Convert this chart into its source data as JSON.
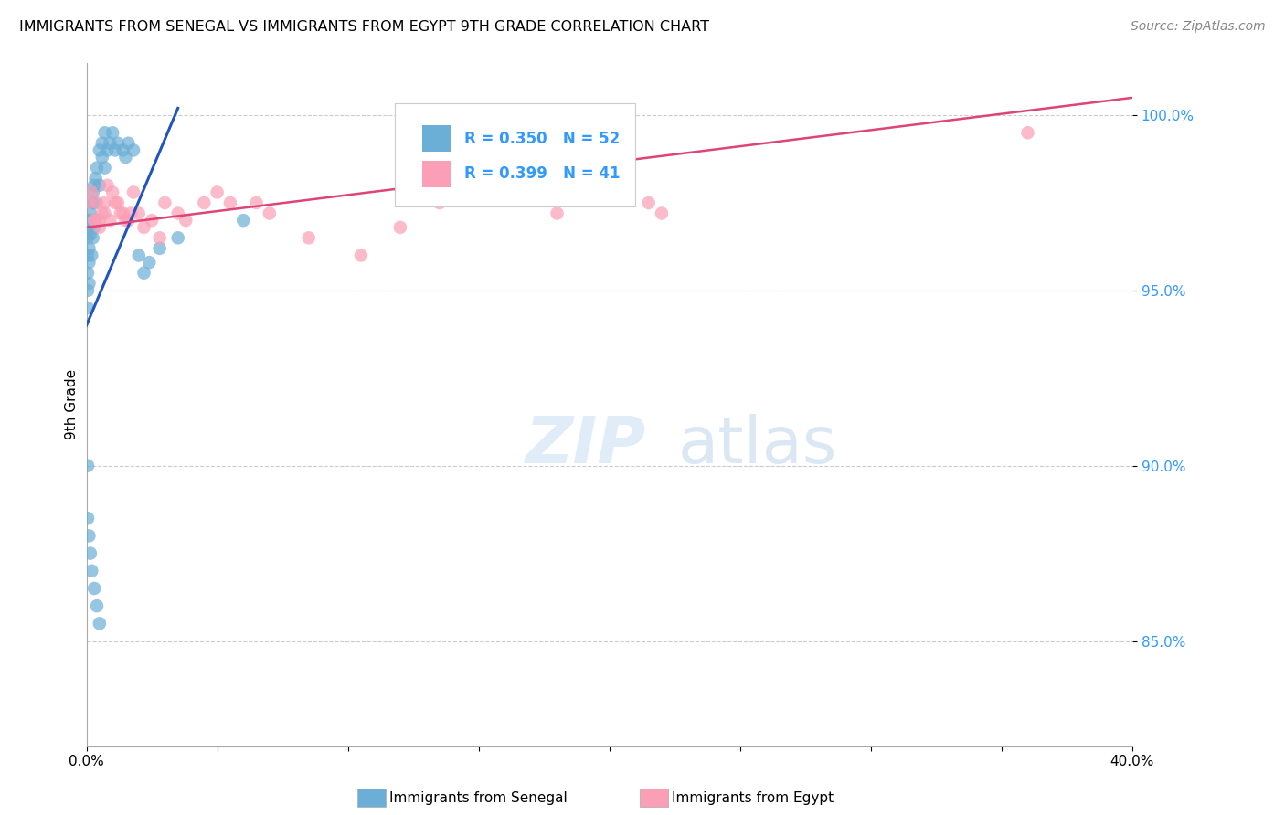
{
  "title": "IMMIGRANTS FROM SENEGAL VS IMMIGRANTS FROM EGYPT 9TH GRADE CORRELATION CHART",
  "source": "Source: ZipAtlas.com",
  "ylabel": "9th Grade",
  "xlim": [
    0.0,
    40.0
  ],
  "ylim": [
    82.0,
    101.5
  ],
  "yticks": [
    85.0,
    90.0,
    95.0,
    100.0
  ],
  "ytick_labels": [
    "85.0%",
    "90.0%",
    "95.0%",
    "100.0%"
  ],
  "xticks": [
    0.0,
    5.0,
    10.0,
    15.0,
    20.0,
    25.0,
    30.0,
    35.0,
    40.0
  ],
  "xtick_labels": [
    "0.0%",
    "",
    "",
    "",
    "",
    "",
    "",
    "",
    "40.0%"
  ],
  "legend_r1": "R = 0.350",
  "legend_n1": "N = 52",
  "legend_r2": "R = 0.399",
  "legend_n2": "N = 41",
  "color_senegal": "#6baed6",
  "color_egypt": "#fa9fb5",
  "trendline_senegal": "#2255bb",
  "trendline_egypt": "#dd4477",
  "watermark_zip": "ZIP",
  "watermark_atlas": "atlas",
  "senegal_x": [
    0.05,
    0.05,
    0.05,
    0.05,
    0.05,
    0.1,
    0.1,
    0.1,
    0.1,
    0.1,
    0.15,
    0.15,
    0.2,
    0.2,
    0.2,
    0.25,
    0.25,
    0.3,
    0.3,
    0.3,
    0.35,
    0.35,
    0.4,
    0.5,
    0.5,
    0.6,
    0.6,
    0.7,
    0.7,
    0.8,
    0.9,
    1.0,
    1.1,
    1.2,
    1.4,
    1.5,
    1.6,
    1.8,
    2.0,
    2.2,
    2.4,
    2.8,
    0.05,
    0.05,
    0.1,
    0.15,
    0.2,
    0.3,
    0.4,
    0.5,
    3.5,
    6.0
  ],
  "senegal_y": [
    96.5,
    96.0,
    95.5,
    95.0,
    94.5,
    97.0,
    96.8,
    96.2,
    95.8,
    95.2,
    97.2,
    96.6,
    97.5,
    97.0,
    96.0,
    97.8,
    96.5,
    98.0,
    97.5,
    96.8,
    98.2,
    97.0,
    98.5,
    99.0,
    98.0,
    99.2,
    98.8,
    99.5,
    98.5,
    99.0,
    99.2,
    99.5,
    99.0,
    99.2,
    99.0,
    98.8,
    99.2,
    99.0,
    96.0,
    95.5,
    95.8,
    96.2,
    90.0,
    88.5,
    88.0,
    87.5,
    87.0,
    86.5,
    86.0,
    85.5,
    96.5,
    97.0
  ],
  "egypt_x": [
    0.1,
    0.2,
    0.3,
    0.4,
    0.5,
    0.6,
    0.7,
    0.8,
    1.0,
    1.2,
    1.4,
    1.6,
    1.8,
    2.0,
    2.5,
    3.0,
    3.5,
    4.5,
    5.0,
    6.5,
    7.0,
    8.5,
    10.5,
    13.5,
    18.0,
    21.5,
    0.3,
    0.5,
    0.7,
    0.9,
    1.1,
    1.3,
    1.5,
    1.7,
    2.2,
    2.8,
    3.8,
    5.5,
    12.0,
    22.0,
    36.0
  ],
  "egypt_y": [
    97.5,
    97.8,
    97.0,
    97.5,
    97.0,
    97.2,
    97.5,
    98.0,
    97.8,
    97.5,
    97.2,
    97.0,
    97.8,
    97.2,
    97.0,
    97.5,
    97.2,
    97.5,
    97.8,
    97.5,
    97.2,
    96.5,
    96.0,
    97.5,
    97.2,
    97.5,
    97.0,
    96.8,
    97.2,
    97.0,
    97.5,
    97.2,
    97.0,
    97.2,
    96.8,
    96.5,
    97.0,
    97.5,
    96.8,
    97.2,
    99.5
  ],
  "trendline_senegal_x0": 0.0,
  "trendline_senegal_y0": 94.0,
  "trendline_senegal_x1": 3.5,
  "trendline_senegal_y1": 100.2,
  "trendline_egypt_x0": 0.0,
  "trendline_egypt_y0": 96.8,
  "trendline_egypt_x1": 40.0,
  "trendline_egypt_y1": 100.5
}
